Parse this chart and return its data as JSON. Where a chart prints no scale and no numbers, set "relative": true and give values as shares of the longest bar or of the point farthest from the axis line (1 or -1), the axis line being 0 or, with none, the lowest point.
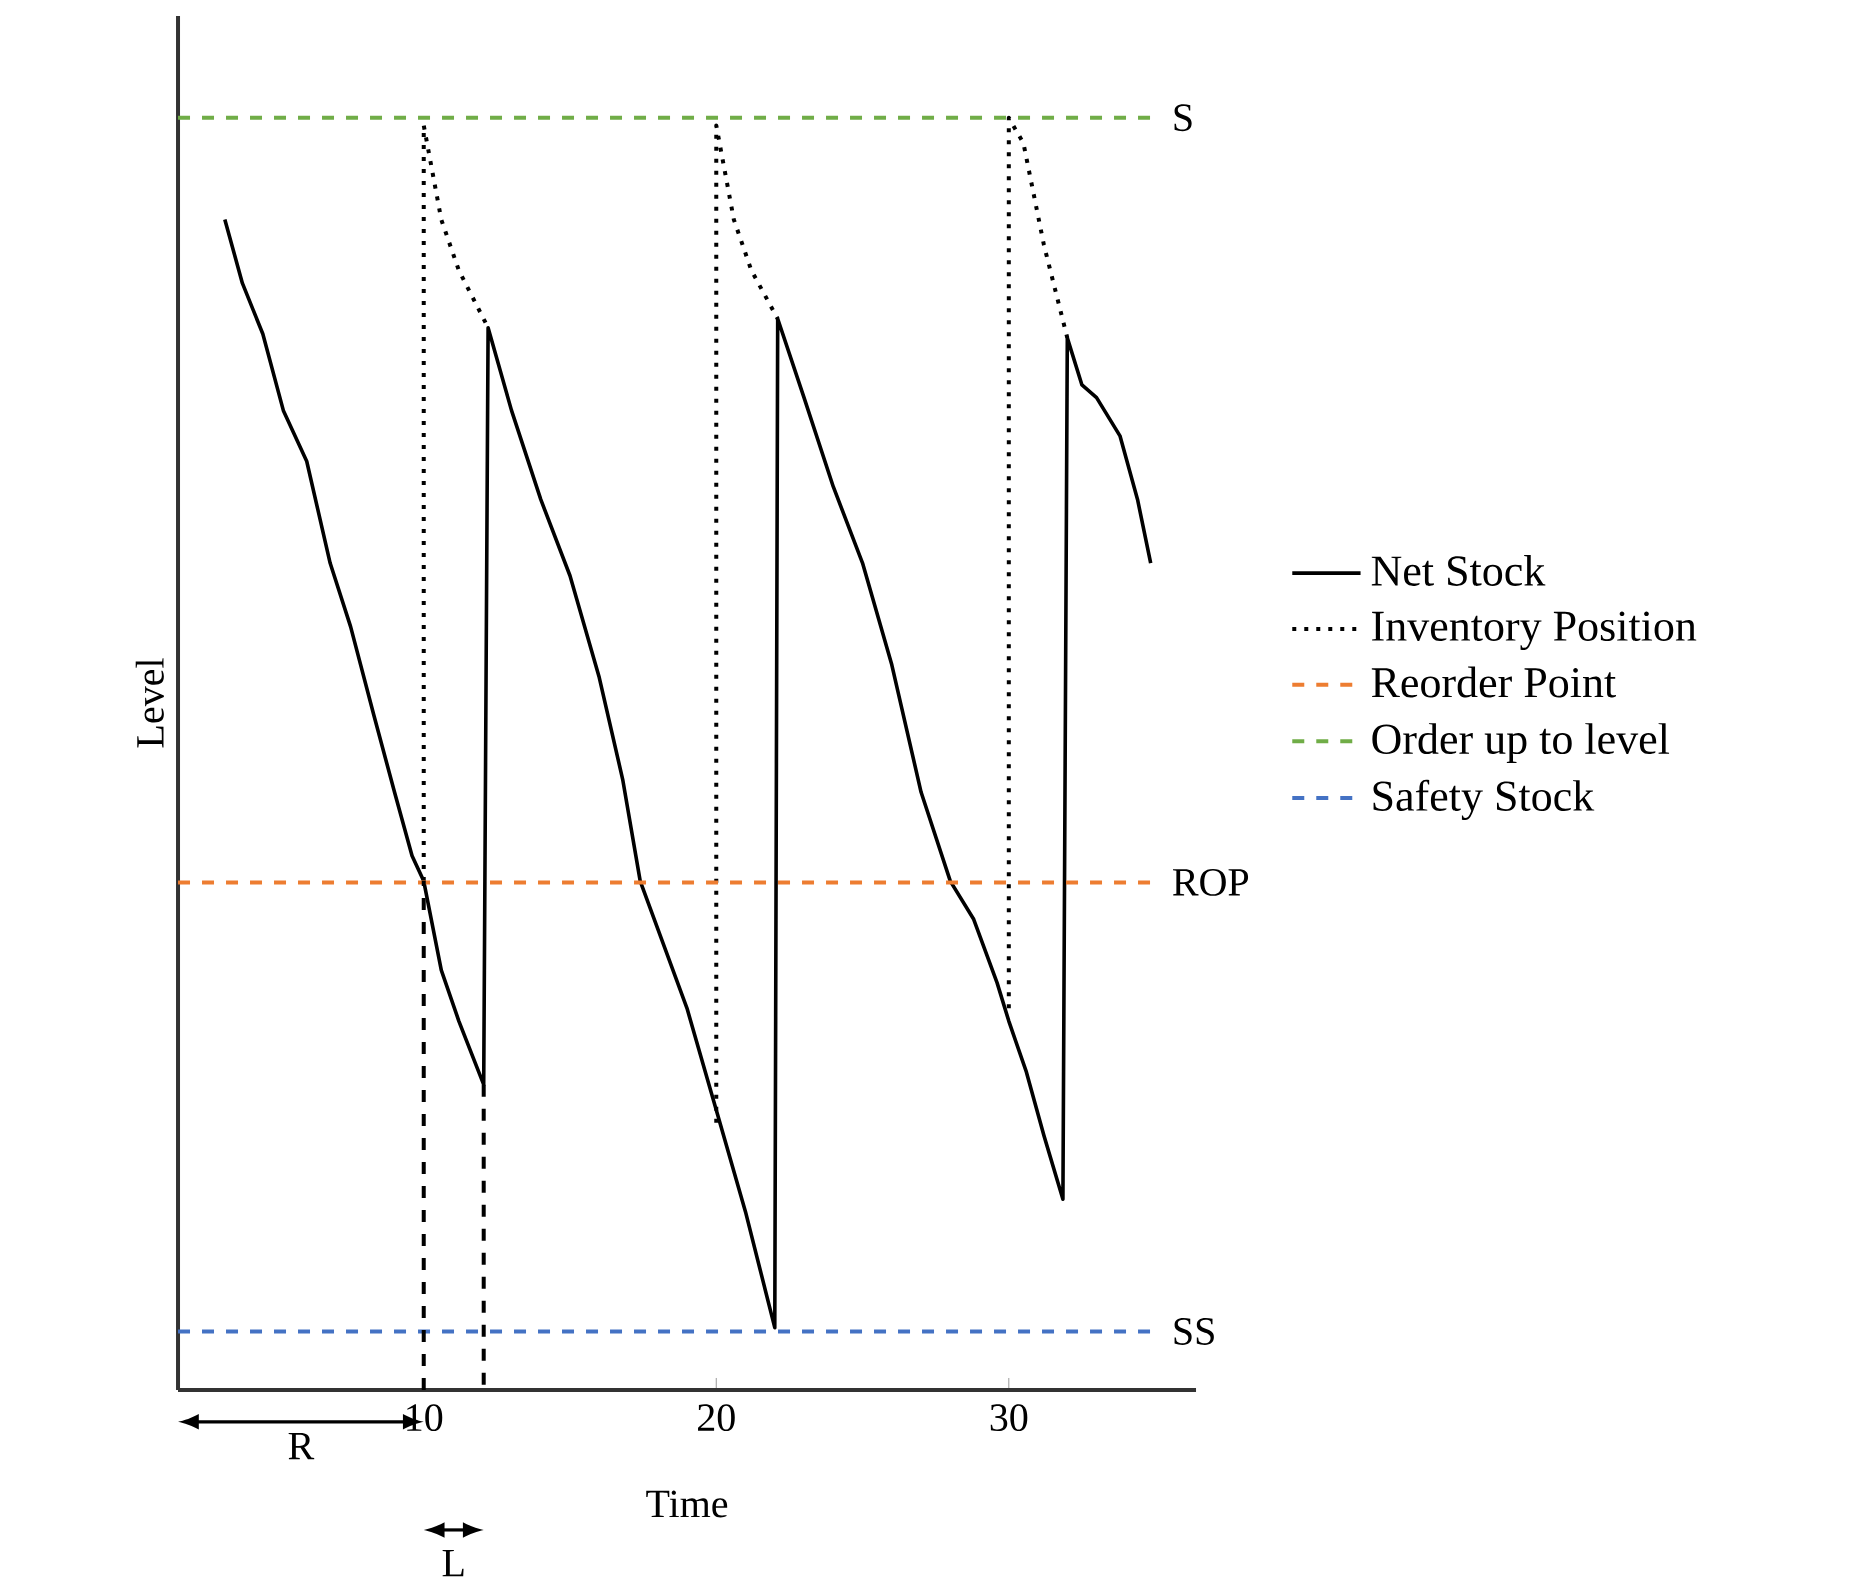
{
  "chart_data": {
    "type": "line",
    "relative": true,
    "xlabel": "Time",
    "ylabel": "Level",
    "xlim": [
      1.6,
      36.4
    ],
    "xticks": [
      10,
      20,
      30
    ],
    "legend": "right",
    "grid": false,
    "series": [
      {
        "name": "Net Stock",
        "color": "#000000",
        "line_style": "solid",
        "x": [
          3.2,
          3.8,
          4.5,
          5.2,
          6,
          6.8,
          7.5,
          8.3,
          9,
          9.6,
          10,
          10.6,
          11.2,
          12.05,
          12.2,
          13,
          14,
          15,
          16,
          16.8,
          17.4,
          18.2,
          19,
          20,
          21,
          22,
          22.1,
          23,
          24,
          25,
          26,
          27,
          28,
          28.8,
          29.6,
          30,
          30.6,
          31.2,
          31.85,
          32,
          32.5,
          33,
          33.8,
          34.4,
          34.85
        ],
        "values": [
          0.92,
          0.87,
          0.83,
          0.77,
          0.73,
          0.65,
          0.6,
          0.53,
          0.47,
          0.42,
          0.4,
          0.33,
          0.29,
          0.24,
          0.835,
          0.77,
          0.7,
          0.64,
          0.56,
          0.48,
          0.4,
          0.35,
          0.3,
          0.22,
          0.14,
          0.049,
          0.842,
          0.78,
          0.71,
          0.65,
          0.57,
          0.47,
          0.4,
          0.37,
          0.32,
          0.29,
          0.25,
          0.2,
          0.15,
          0.827,
          0.79,
          0.78,
          0.75,
          0.7,
          0.65
        ]
      },
      {
        "name": "Inventory Position",
        "color": "#000000",
        "line_style": "dotted",
        "x": [
          10,
          10,
          10.6,
          11.2,
          12.2,
          15,
          20,
          20,
          20.6,
          21.2,
          22.1,
          25,
          30,
          30,
          30.5,
          31.2,
          32
        ],
        "values": [
          0.4,
          0.994,
          0.92,
          0.88,
          0.835,
          null,
          0.21,
          0.994,
          0.92,
          0.88,
          0.842,
          null,
          0.3,
          1.0,
          0.98,
          0.9,
          0.827
        ]
      },
      {
        "name": "Reorder Point",
        "color": "#ed7d31",
        "line_style": "dashed",
        "x": [
          1.6,
          35.0
        ],
        "values": [
          0.399,
          0.399
        ]
      },
      {
        "name": "Order up to level",
        "color": "#70ad47",
        "line_style": "dashed",
        "x": [
          1.6,
          35.0
        ],
        "values": [
          1.0,
          1.0
        ]
      },
      {
        "name": "Safety Stock",
        "color": "#4472c4",
        "line_style": "dashed",
        "x": [
          1.6,
          35.0
        ],
        "values": [
          0.046,
          0.046
        ]
      },
      {
        "color": "#000000",
        "line_style": "dashed",
        "x": [
          10,
          10,
          11,
          12.05,
          12.05
        ],
        "values": [
          0,
          0.4,
          null,
          0.24,
          0
        ]
      }
    ],
    "annotations": [
      "ROP",
      "S",
      "SS",
      "R",
      "L"
    ]
  }
}
